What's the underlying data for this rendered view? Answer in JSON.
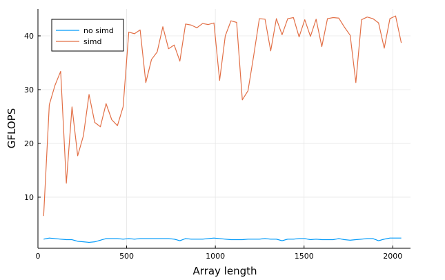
{
  "chart_data": {
    "type": "line",
    "title": "",
    "xlabel": "Array length",
    "ylabel": "GFLOPS",
    "xlim": [
      0,
      2100
    ],
    "ylim": [
      0.5,
      45
    ],
    "xticks": [
      0,
      500,
      1000,
      1500,
      2000
    ],
    "yticks": [
      10,
      20,
      30,
      40
    ],
    "grid": true,
    "legend_position": "top-left",
    "series": [
      {
        "name": "no simd",
        "color": "#009AFA",
        "x": [
          32,
          64,
          96,
          128,
          160,
          192,
          224,
          256,
          288,
          320,
          352,
          384,
          416,
          448,
          480,
          512,
          544,
          576,
          608,
          640,
          672,
          704,
          736,
          768,
          800,
          832,
          864,
          896,
          928,
          960,
          992,
          1024,
          1056,
          1088,
          1120,
          1152,
          1184,
          1216,
          1248,
          1280,
          1312,
          1344,
          1376,
          1408,
          1440,
          1472,
          1504,
          1536,
          1568,
          1600,
          1632,
          1664,
          1696,
          1728,
          1760,
          1792,
          1824,
          1856,
          1888,
          1920,
          1952,
          1984,
          2016,
          2048
        ],
        "y": [
          2.2,
          2.4,
          2.3,
          2.2,
          2.1,
          2.1,
          1.8,
          1.7,
          1.6,
          1.7,
          2.0,
          2.3,
          2.3,
          2.3,
          2.2,
          2.3,
          2.2,
          2.3,
          2.3,
          2.3,
          2.3,
          2.3,
          2.3,
          2.2,
          1.9,
          2.3,
          2.2,
          2.2,
          2.2,
          2.3,
          2.4,
          2.3,
          2.2,
          2.1,
          2.1,
          2.1,
          2.2,
          2.2,
          2.2,
          2.3,
          2.2,
          2.2,
          1.9,
          2.2,
          2.2,
          2.3,
          2.3,
          2.1,
          2.2,
          2.1,
          2.1,
          2.1,
          2.3,
          2.1,
          2.0,
          2.1,
          2.2,
          2.3,
          2.3,
          1.9,
          2.2,
          2.4,
          2.4,
          2.4
        ]
      },
      {
        "name": "simd",
        "color": "#E26F46",
        "x": [
          32,
          64,
          96,
          128,
          160,
          192,
          224,
          256,
          288,
          320,
          352,
          384,
          416,
          448,
          480,
          512,
          544,
          576,
          608,
          640,
          672,
          704,
          736,
          768,
          800,
          832,
          864,
          896,
          928,
          960,
          992,
          1024,
          1056,
          1088,
          1120,
          1152,
          1184,
          1216,
          1248,
          1280,
          1312,
          1344,
          1376,
          1408,
          1440,
          1472,
          1504,
          1536,
          1568,
          1600,
          1632,
          1664,
          1696,
          1728,
          1760,
          1792,
          1824,
          1856,
          1888,
          1920,
          1952,
          1984,
          2016,
          2048
        ],
        "y": [
          6.5,
          27.2,
          30.8,
          33.4,
          12.6,
          26.8,
          17.7,
          21.4,
          29.1,
          23.9,
          23.1,
          27.4,
          24.4,
          23.3,
          26.8,
          40.7,
          40.4,
          41.1,
          31.3,
          35.6,
          37.0,
          41.7,
          37.6,
          38.3,
          35.3,
          42.2,
          42.0,
          41.5,
          42.3,
          42.1,
          42.4,
          31.7,
          40.0,
          42.8,
          42.5,
          28.1,
          29.8,
          36.3,
          43.2,
          43.1,
          37.2,
          43.2,
          40.2,
          43.2,
          43.4,
          39.8,
          43.0,
          39.9,
          43.1,
          38.0,
          43.2,
          43.4,
          43.3,
          41.6,
          40.1,
          31.3,
          43.0,
          43.5,
          43.2,
          42.4,
          37.7,
          43.2,
          43.7,
          38.7
        ]
      }
    ]
  }
}
